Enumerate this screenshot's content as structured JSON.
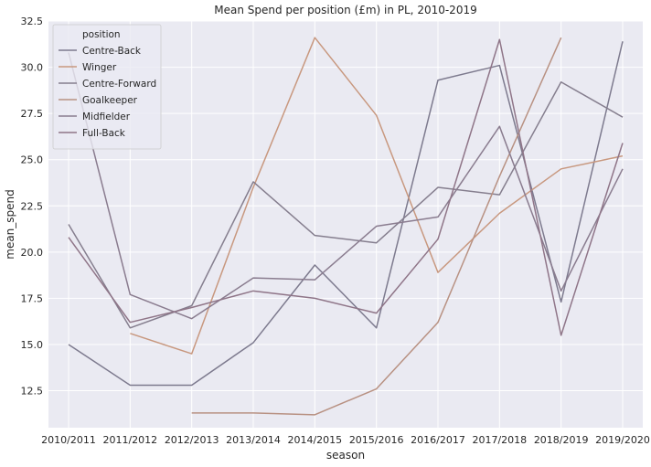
{
  "chart_data": {
    "type": "line",
    "title": "Mean Spend per position (£m) in PL, 2010-2019",
    "xlabel": "season",
    "ylabel": "mean_spend",
    "categories": [
      "2010/2011",
      "2011/2012",
      "2012/2013",
      "2013/2014",
      "2014/2015",
      "2015/2016",
      "2016/2017",
      "2017/2018",
      "2018/2019",
      "2019/2020"
    ],
    "ylim": [
      10.5,
      32.5
    ],
    "yticks": [
      12.5,
      15.0,
      17.5,
      20.0,
      22.5,
      25.0,
      27.5,
      30.0,
      32.5
    ],
    "ytick_labels": [
      "12.5",
      "15.0",
      "17.5",
      "20.0",
      "22.5",
      "25.0",
      "27.5",
      "30.0",
      "32.5"
    ],
    "grid": true,
    "legend": {
      "title": "position",
      "placement": "top-left"
    },
    "series": [
      {
        "name": "Centre-Back",
        "color": "#7d7a8e",
        "values": [
          15.0,
          12.8,
          12.8,
          15.1,
          19.3,
          15.9,
          29.3,
          30.1,
          17.3,
          31.4
        ]
      },
      {
        "name": "Winger",
        "color": "#c8987f",
        "values": [
          null,
          15.6,
          14.5,
          23.5,
          31.6,
          27.4,
          18.9,
          22.1,
          24.5,
          25.2
        ]
      },
      {
        "name": "Centre-Forward",
        "color": "#857e8e",
        "values": [
          21.5,
          15.9,
          17.1,
          23.8,
          20.9,
          20.5,
          23.5,
          23.1,
          29.2,
          27.3
        ]
      },
      {
        "name": "Goalkeeper",
        "color": "#b89182",
        "values": [
          null,
          null,
          11.3,
          11.3,
          11.2,
          12.6,
          16.2,
          24.1,
          31.6,
          null
        ]
      },
      {
        "name": "Midfielder",
        "color": "#8a7c8f",
        "values": [
          30.8,
          17.7,
          16.4,
          18.6,
          18.5,
          21.4,
          21.9,
          26.8,
          17.9,
          24.5
        ]
      },
      {
        "name": "Full-Back",
        "color": "#8f7588",
        "values": [
          20.8,
          16.2,
          17.0,
          17.9,
          17.5,
          16.7,
          20.7,
          31.5,
          15.5,
          25.9
        ]
      }
    ]
  }
}
